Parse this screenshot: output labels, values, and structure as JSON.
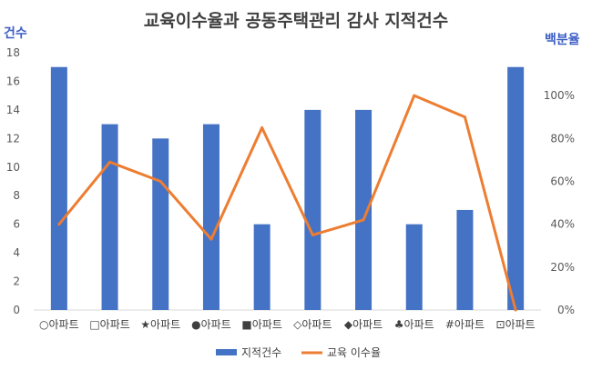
{
  "chart_data": {
    "type": "bar+line",
    "title": "교육이수율과 공동주택관리 감사 지적건수",
    "ylabel_left": "건수",
    "ylabel_right": "백분율",
    "categories": [
      "○아파트",
      "□아파트",
      "★아파트",
      "●아파트",
      "■아파트",
      "◇아파트",
      "◆아파트",
      "♣아파트",
      "#아파트",
      "⊡아파트"
    ],
    "y_left": {
      "min": 0,
      "max": 18,
      "step": 2,
      "ticks": [
        "0",
        "2",
        "4",
        "6",
        "8",
        "10",
        "12",
        "14",
        "16",
        "18"
      ]
    },
    "y_right": {
      "min": 0,
      "max": 1.2,
      "ticks": [
        "0%",
        "20%",
        "40%",
        "60%",
        "80%",
        "100%"
      ]
    },
    "series": [
      {
        "name": "지적건수",
        "type": "bar",
        "axis": "left",
        "color": "#4472c4",
        "values": [
          17,
          13,
          12,
          13,
          6,
          14,
          14,
          6,
          7,
          17
        ]
      },
      {
        "name": "교육 이수율",
        "type": "line",
        "axis": "right",
        "color": "#ed7d31",
        "values": [
          0.4,
          0.69,
          0.6,
          0.33,
          0.85,
          0.35,
          0.42,
          1.0,
          0.9,
          0.0
        ]
      }
    ],
    "grid": false,
    "legend_position": "bottom"
  }
}
